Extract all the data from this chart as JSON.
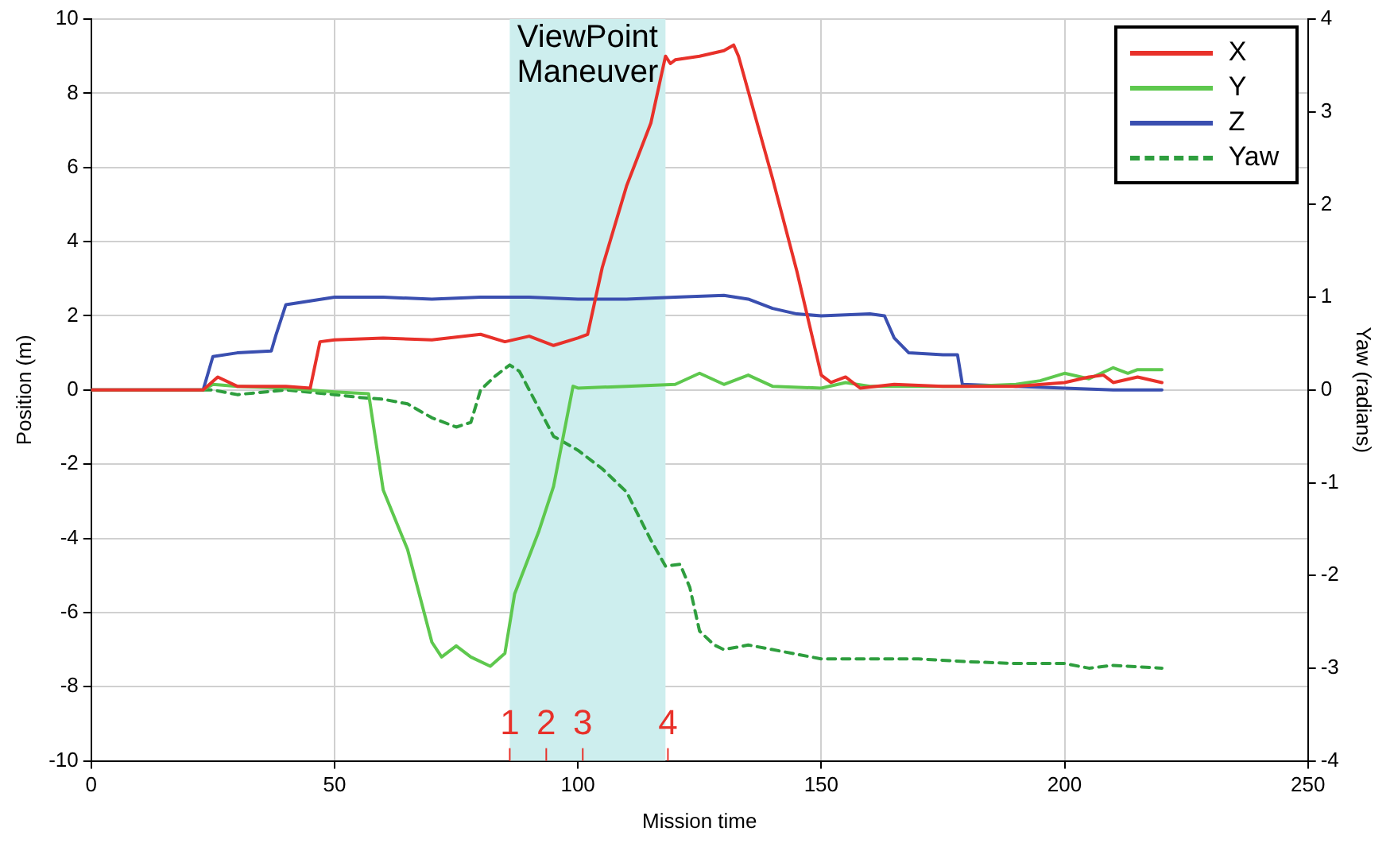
{
  "chart_data": {
    "type": "line",
    "xlabel": "Mission time",
    "ylabel": "Position (m)",
    "y2label": "Yaw (radians)",
    "xlim": [
      0,
      250
    ],
    "xticks": [
      0,
      50,
      100,
      150,
      200,
      250
    ],
    "ylim": [
      -10,
      10
    ],
    "yticks": [
      -10,
      -8,
      -6,
      -4,
      -2,
      0,
      2,
      4,
      6,
      8,
      10
    ],
    "y2lim": [
      -4,
      4
    ],
    "y2ticks": [
      -4,
      -3,
      -2,
      -1,
      0,
      1,
      2,
      3,
      4
    ],
    "grid": true,
    "legend": "top right",
    "marker": "none",
    "series": [
      {
        "name": "X",
        "color": "#e8312a",
        "line_style": "solid",
        "x": [
          0,
          23,
          26,
          30,
          40,
          45,
          47,
          50,
          60,
          70,
          80,
          85,
          90,
          95,
          100,
          102,
          105,
          110,
          115,
          118,
          119,
          120,
          125,
          130,
          132,
          133,
          140,
          145,
          150,
          152,
          155,
          158,
          165,
          175,
          180,
          190,
          200,
          205,
          208,
          210,
          215,
          220
        ],
        "values": [
          0,
          0,
          0.35,
          0.1,
          0.1,
          0.05,
          1.3,
          1.35,
          1.4,
          1.35,
          1.5,
          1.3,
          1.45,
          1.2,
          1.4,
          1.5,
          3.3,
          5.5,
          7.2,
          9.0,
          8.8,
          8.9,
          9.0,
          9.15,
          9.3,
          9.0,
          5.7,
          3.2,
          0.4,
          0.2,
          0.35,
          0.05,
          0.15,
          0.1,
          0.1,
          0.1,
          0.2,
          0.35,
          0.4,
          0.2,
          0.35,
          0.2
        ]
      },
      {
        "name": "Y",
        "color": "#5ec84e",
        "line_style": "solid",
        "x": [
          0,
          23,
          25,
          30,
          40,
          50,
          57,
          60,
          65,
          70,
          72,
          75,
          78,
          82,
          85,
          87,
          92,
          95,
          99,
          100,
          110,
          120,
          125,
          130,
          135,
          140,
          150,
          155,
          160,
          170,
          180,
          190,
          195,
          200,
          205,
          210,
          213,
          215,
          220
        ],
        "values": [
          0,
          0,
          0.15,
          0.1,
          0.05,
          -0.05,
          -0.1,
          -2.7,
          -4.3,
          -6.8,
          -7.2,
          -6.9,
          -7.2,
          -7.45,
          -7.1,
          -5.5,
          -3.8,
          -2.6,
          0.1,
          0.05,
          0.1,
          0.15,
          0.45,
          0.15,
          0.4,
          0.1,
          0.05,
          0.2,
          0.1,
          0.1,
          0.1,
          0.15,
          0.25,
          0.45,
          0.3,
          0.6,
          0.45,
          0.55,
          0.55
        ]
      },
      {
        "name": "Z",
        "color": "#3a4fb0",
        "line_style": "solid",
        "x": [
          0,
          23,
          25,
          30,
          37,
          38,
          40,
          45,
          50,
          60,
          70,
          80,
          90,
          100,
          110,
          120,
          130,
          135,
          140,
          145,
          150,
          160,
          163,
          165,
          168,
          175,
          178,
          179,
          190,
          200,
          210,
          220
        ],
        "values": [
          0,
          0,
          0.9,
          1.0,
          1.05,
          1.5,
          2.3,
          2.4,
          2.5,
          2.5,
          2.45,
          2.5,
          2.5,
          2.45,
          2.45,
          2.5,
          2.55,
          2.45,
          2.2,
          2.05,
          2.0,
          2.05,
          2.0,
          1.4,
          1.0,
          0.95,
          0.95,
          0.15,
          0.1,
          0.05,
          0.0,
          0.0
        ]
      },
      {
        "name": "Yaw",
        "color": "#2e9e3e",
        "line_style": "dashed",
        "axis": "y2",
        "x": [
          23,
          25,
          30,
          40,
          50,
          55,
          60,
          65,
          70,
          75,
          78,
          80,
          83,
          86,
          88,
          92,
          95,
          100,
          105,
          110,
          115,
          118,
          121,
          123,
          125,
          128,
          130,
          135,
          140,
          145,
          150,
          160,
          170,
          180,
          190,
          200,
          205,
          210,
          220
        ],
        "values": [
          0,
          0,
          -0.05,
          0,
          -0.05,
          -0.08,
          -0.1,
          -0.15,
          -0.3,
          -0.4,
          -0.35,
          0,
          0.15,
          0.27,
          0.2,
          -0.2,
          -0.5,
          -0.65,
          -0.85,
          -1.1,
          -1.62,
          -1.9,
          -1.88,
          -2.13,
          -2.6,
          -2.75,
          -2.8,
          -2.75,
          -2.8,
          -2.85,
          -2.9,
          -2.9,
          -2.9,
          -2.93,
          -2.95,
          -2.95,
          -3.0,
          -2.97,
          -3.0
        ]
      }
    ],
    "bands": [
      {
        "axis": "x",
        "from": 86,
        "to": 118,
        "label": "ViewPoint Maneuver",
        "color": "#cdeeee"
      }
    ],
    "annotations": [
      {
        "text": "1",
        "x": 86,
        "y": -10
      },
      {
        "text": "2",
        "x": 93.5,
        "y": -10
      },
      {
        "text": "3",
        "x": 101,
        "y": -10
      },
      {
        "text": "4",
        "x": 118.5,
        "y": -10
      }
    ]
  }
}
